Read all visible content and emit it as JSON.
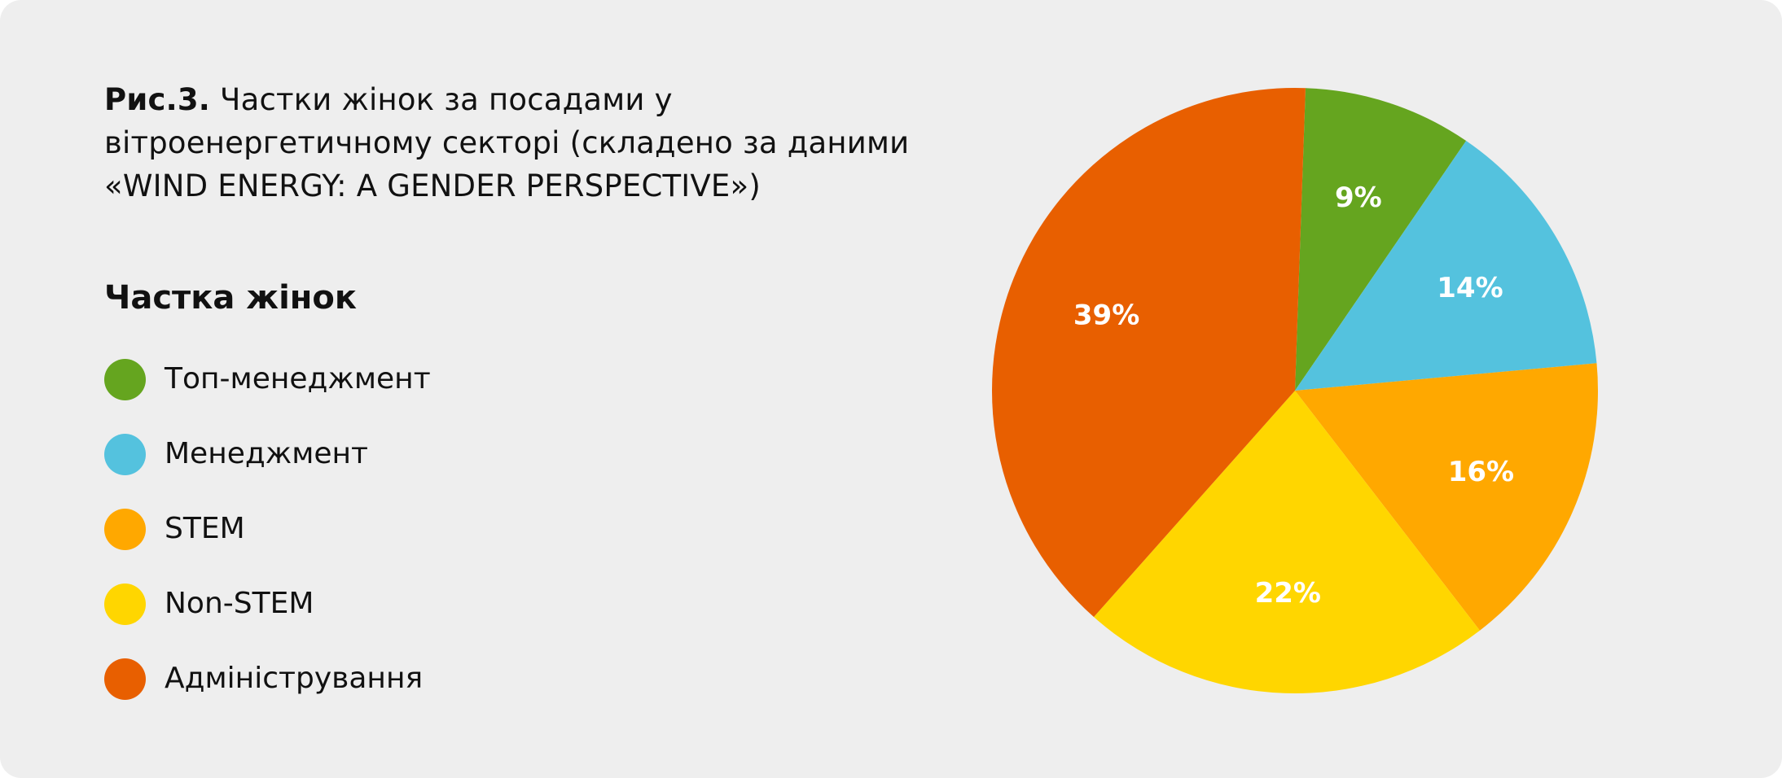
{
  "caption": {
    "fig_no": "Рис.3.",
    "text": "Частки жінок за посадами у вітроенергетичному секторі (складено за даними «WIND ENERGY: A GENDER PERSPECTIVE»)"
  },
  "chart_data": {
    "type": "pie",
    "legend_title": "Частка жінок",
    "legend_position": "left",
    "start_angle_deg": 2,
    "direction": "clockwise",
    "slices": [
      {
        "label": "Топ-менеджмент",
        "value": 9,
        "value_label": "9%",
        "color": "#65a51f"
      },
      {
        "label": "Менеджмент",
        "value": 14,
        "value_label": "14%",
        "color": "#54c2de"
      },
      {
        "label": "STEM",
        "value": 16,
        "value_label": "16%",
        "color": "#ffa800"
      },
      {
        "label": "Non-STEM",
        "value": 22,
        "value_label": "22%",
        "color": "#ffd600"
      },
      {
        "label": "Адміністрування",
        "value": 39,
        "value_label": "39%",
        "color": "#e85f00"
      }
    ]
  }
}
